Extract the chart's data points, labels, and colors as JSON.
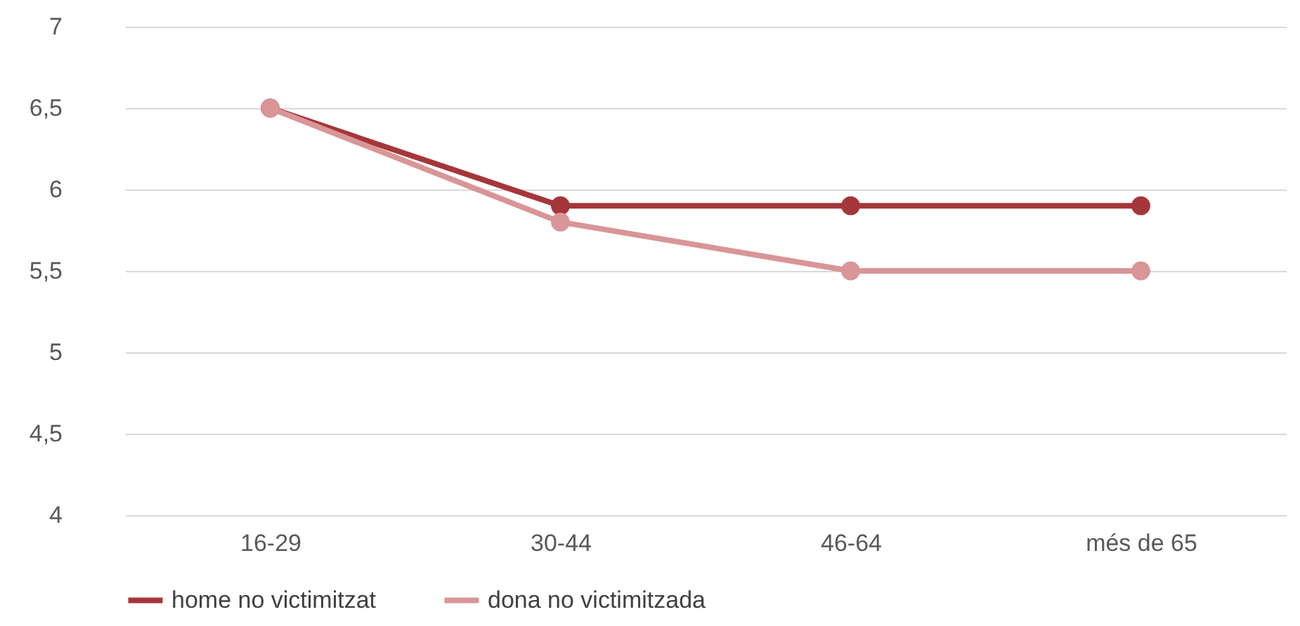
{
  "chart_data": {
    "type": "line",
    "categories": [
      "16-29",
      "30-44",
      "46-64",
      "més de 65"
    ],
    "series": [
      {
        "name": "home no victimitzat",
        "color": "#a5363a",
        "values": [
          6.5,
          5.9,
          5.9,
          5.9
        ]
      },
      {
        "name": "dona no victimitzada",
        "color": "#d99597",
        "values": [
          6.5,
          5.8,
          5.5,
          5.5
        ]
      }
    ],
    "ylim": [
      4,
      7
    ],
    "yticks": [
      4,
      {
        "value": 4.5,
        "label": "4,5"
      },
      5,
      {
        "value": 5.5,
        "label": "5,5"
      },
      6,
      {
        "value": 6.5,
        "label": "6,5"
      },
      7
    ],
    "grid": "y",
    "legend": "bottom",
    "marker": "circle",
    "line_style": "solid"
  }
}
